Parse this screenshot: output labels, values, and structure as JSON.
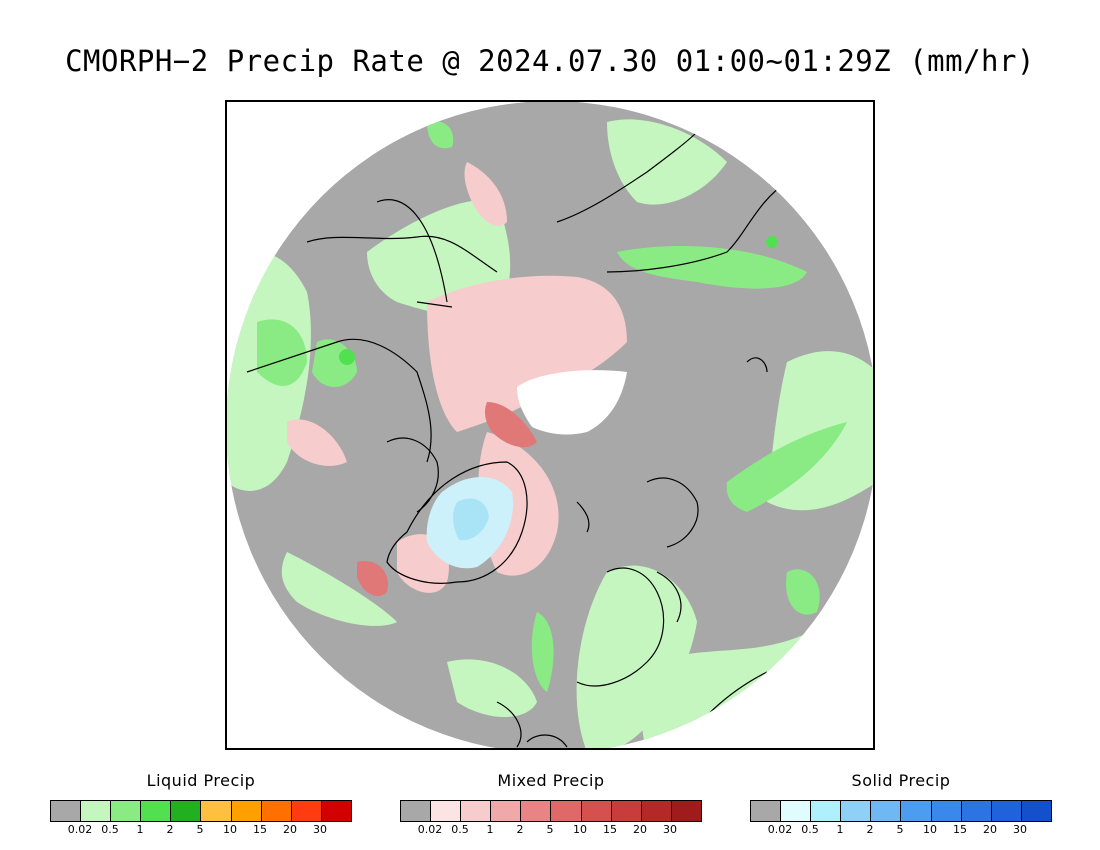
{
  "title": "CMORPH−2 Precip Rate @ 2024.07.30 01:00~01:29Z (mm/hr)",
  "map": {
    "projection": "north polar stereographic",
    "colors": {
      "no_precip": "#a8a8a8",
      "outside": "#ffffff",
      "coastline": "#000000",
      "liquid_light": "#c6f6c0",
      "liquid_mid": "#8aea84",
      "mixed_light": "#f7cccc",
      "mixed_dark": "#e07878",
      "solid_light": "#cdf1fb",
      "no_data": "#ffffff"
    }
  },
  "legends": [
    {
      "title": "Liquid Precip",
      "colors": [
        "#a8a8a8",
        "#c6f6c0",
        "#8aea84",
        "#50e050",
        "#20b020",
        "#ffc040",
        "#ffa000",
        "#ff7000",
        "#ff3c10",
        "#d20000"
      ],
      "ticks": [
        "0.02",
        "0.5",
        "1",
        "2",
        "5",
        "10",
        "15",
        "20",
        "30"
      ]
    },
    {
      "title": "Mixed Precip",
      "colors": [
        "#a8a8a8",
        "#fde4e4",
        "#f7cccc",
        "#f0a8a8",
        "#e88484",
        "#e06868",
        "#d65050",
        "#c83c3c",
        "#b42828",
        "#a01c1c"
      ],
      "ticks": [
        "0.02",
        "0.5",
        "1",
        "2",
        "5",
        "10",
        "15",
        "20",
        "30"
      ]
    },
    {
      "title": "Solid Precip",
      "colors": [
        "#a8a8a8",
        "#e0fcfc",
        "#b0f0fc",
        "#90d0f8",
        "#70b8f4",
        "#4c9cf0",
        "#3a88ec",
        "#2c74e4",
        "#1f62dc",
        "#1450cc"
      ],
      "ticks": [
        "0.02",
        "0.5",
        "1",
        "2",
        "5",
        "10",
        "15",
        "20",
        "30"
      ]
    }
  ]
}
